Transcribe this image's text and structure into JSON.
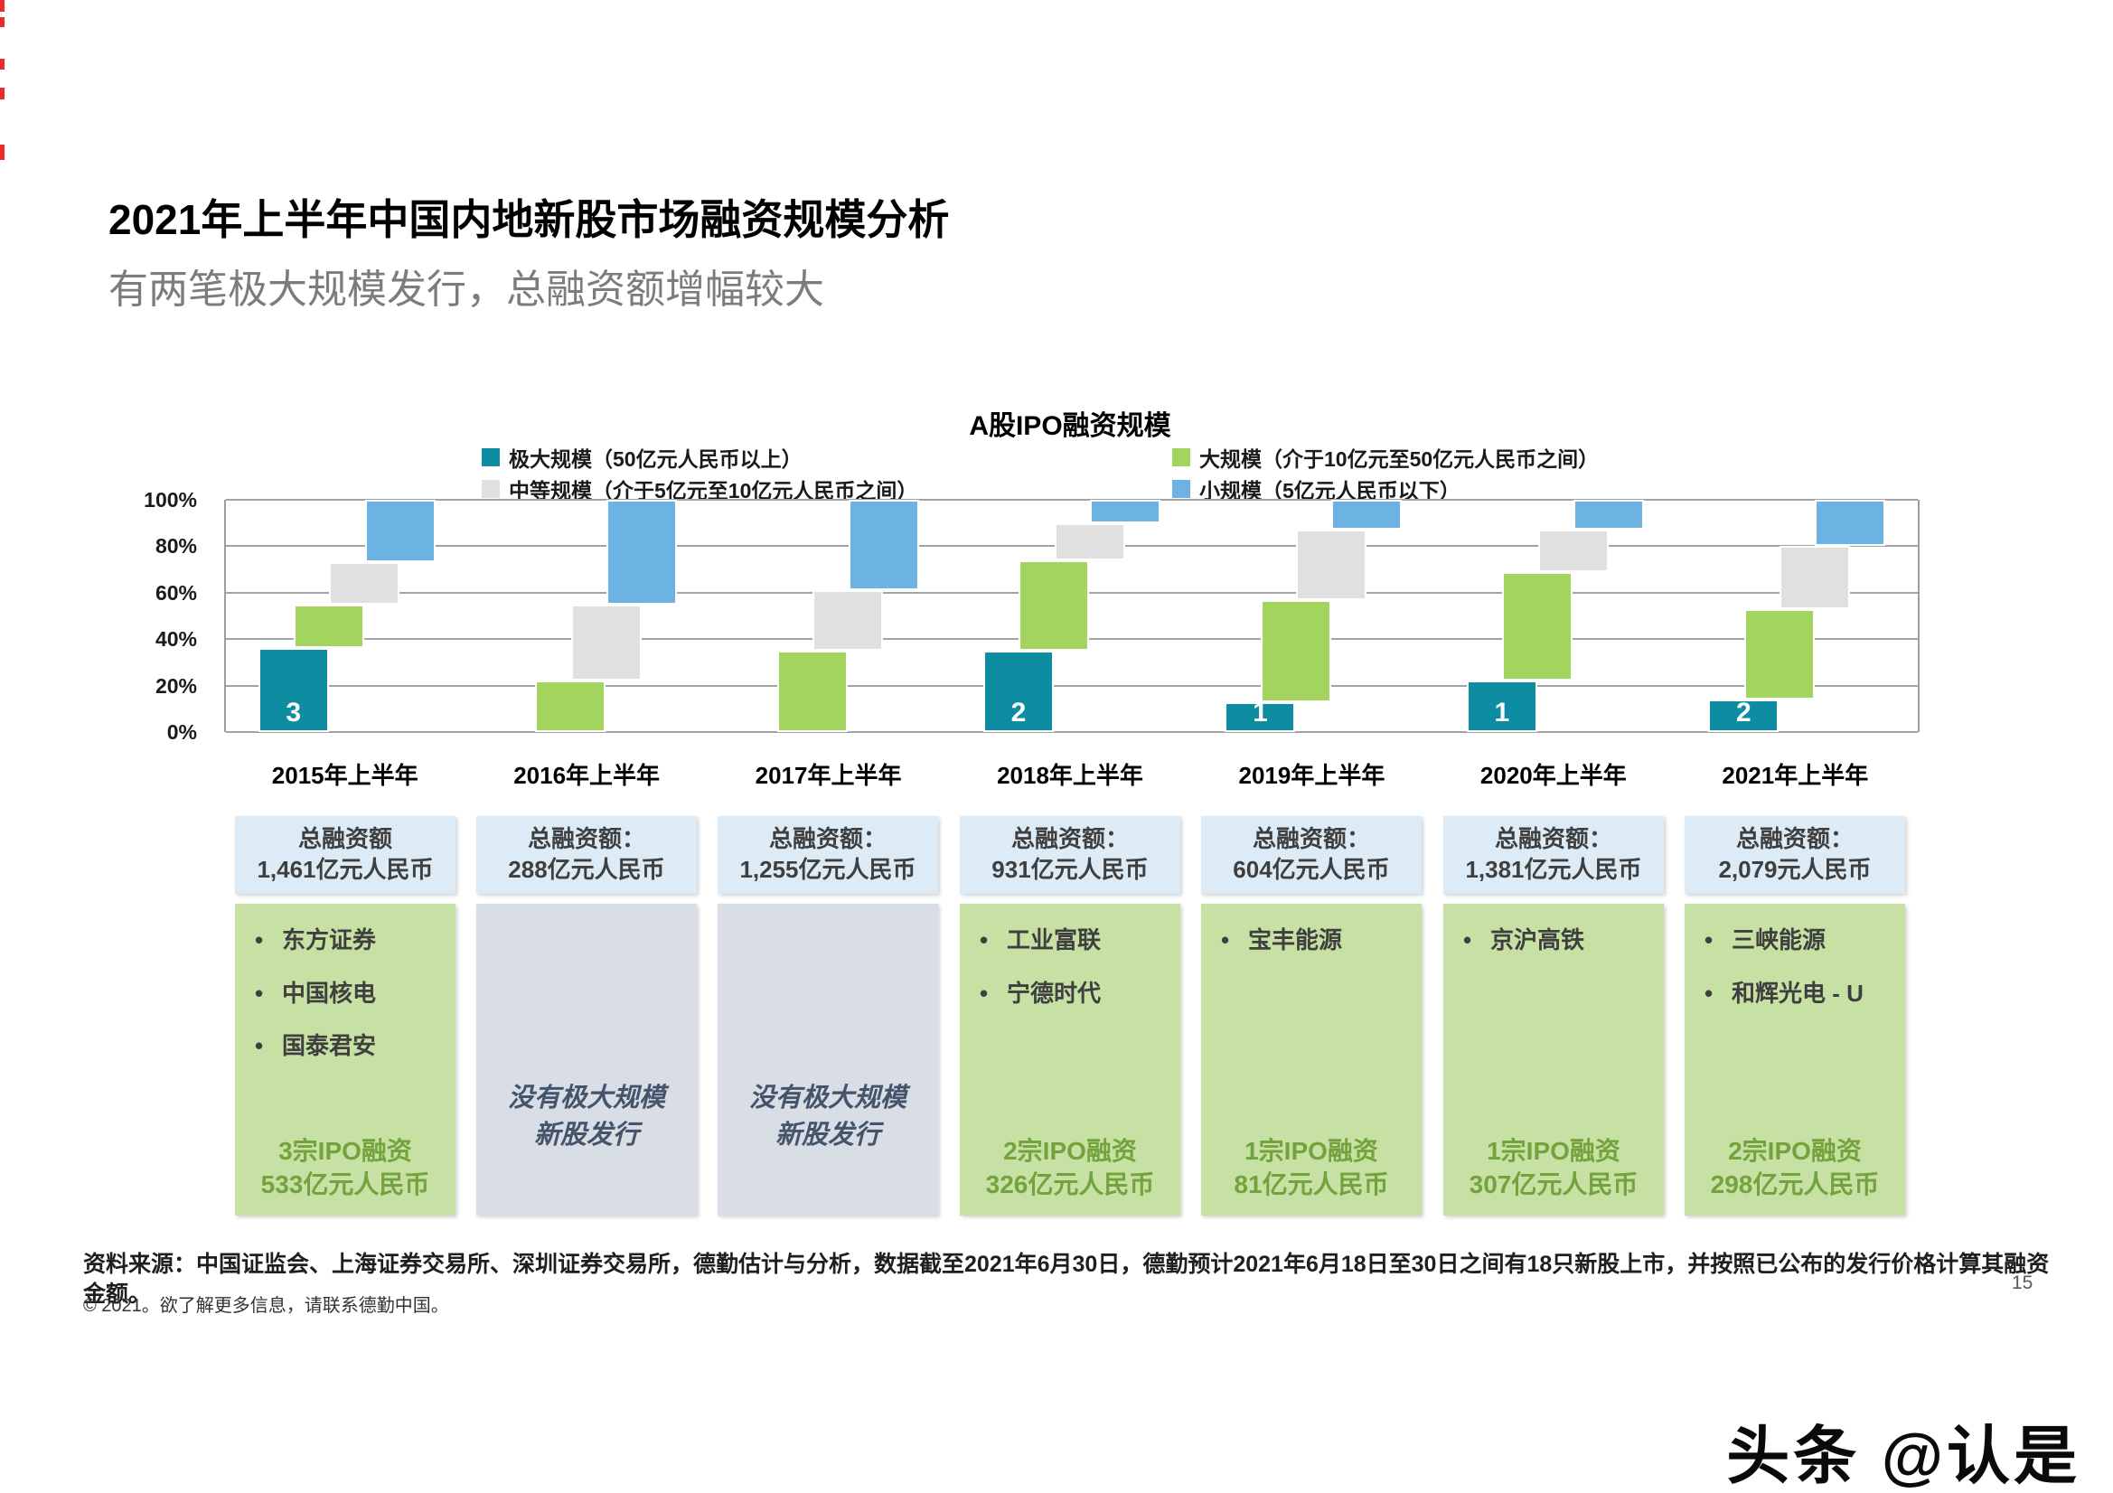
{
  "page": {
    "title": "2021年上半年中国内地新股市场融资规模分析",
    "subtitle": "有两笔极大规模发行，总融资额增幅较大",
    "source_note": "资料来源：中国证监会、上海证券交易所、深圳证券交易所，德勤估计与分析，数据截至2021年6月30日，德勤预计2021年6月18日至30日之间有18只新股上市，并按照已公布的发行价格计算其融资金额。",
    "copyright_note": "© 2021。欲了解更多信息，请联系德勤中国。",
    "page_number": "15",
    "watermark": "头条 @认是"
  },
  "chart_data": {
    "type": "bar",
    "stacked": true,
    "title": "A股IPO融资规模",
    "categories": [
      "2015年上半年",
      "2016年上半年",
      "2017年上半年",
      "2018年上半年",
      "2019年上半年",
      "2020年上半年",
      "2021年上半年"
    ],
    "series": [
      {
        "name": "极大规模（50亿元人民币以上）",
        "color": "#0E8DA2",
        "values": [
          36,
          0,
          0,
          35,
          13,
          22,
          14
        ]
      },
      {
        "name": "大规模（介于10亿元至50亿元人民币之间）",
        "color": "#A2D45E",
        "values": [
          19,
          22,
          35,
          39,
          44,
          47,
          39
        ]
      },
      {
        "name": "中等规模（介于5亿元至10亿元人民币之间）",
        "color": "#E0E0E0",
        "values": [
          18,
          33,
          26,
          16,
          30,
          18,
          27
        ]
      },
      {
        "name": "小规模（5亿元人民币以下）",
        "color": "#6CB2E2",
        "values": [
          27,
          45,
          39,
          10,
          13,
          13,
          20
        ]
      }
    ],
    "mega_deal_counts": [
      "3",
      "",
      "",
      "2",
      "1",
      "1",
      "2"
    ],
    "yticks": [
      "0%",
      "20%",
      "40%",
      "60%",
      "80%",
      "100%"
    ],
    "ylim": [
      0,
      100
    ],
    "unit": "percent",
    "grid": true,
    "legend_position": "top"
  },
  "summary_columns": [
    {
      "header_line1": "总融资额",
      "header_line2": "1,461亿元人民币",
      "type": "green",
      "companies": [
        "东方证券",
        "中国核电",
        "国泰君安"
      ],
      "deal_line1": "3宗IPO融资",
      "deal_line2": "533亿元人民币"
    },
    {
      "header_line1": "总融资额：",
      "header_line2": "288亿元人民币",
      "type": "gray",
      "no_deal_line1": "没有极大规模",
      "no_deal_line2": "新股发行"
    },
    {
      "header_line1": "总融资额：",
      "header_line2": "1,255亿元人民币",
      "type": "gray",
      "no_deal_line1": "没有极大规模",
      "no_deal_line2": "新股发行"
    },
    {
      "header_line1": "总融资额：",
      "header_line2": "931亿元人民币",
      "type": "green",
      "companies": [
        "工业富联",
        "宁德时代"
      ],
      "deal_line1": "2宗IPO融资",
      "deal_line2": "326亿元人民币"
    },
    {
      "header_line1": "总融资额：",
      "header_line2": "604亿元人民币",
      "type": "green",
      "companies": [
        "宝丰能源"
      ],
      "deal_line1": "1宗IPO融资",
      "deal_line2": "81亿元人民币"
    },
    {
      "header_line1": "总融资额：",
      "header_line2": "1,381亿元人民币",
      "type": "green",
      "companies": [
        "京沪高铁"
      ],
      "deal_line1": "1宗IPO融资",
      "deal_line2": "307亿元人民币"
    },
    {
      "header_line1": "总融资额：",
      "header_line2": "2,079元人民币",
      "type": "green",
      "companies": [
        "三峡能源",
        "和辉光电 - U"
      ],
      "deal_line1": "2宗IPO融资",
      "deal_line2": "298亿元人民币"
    }
  ],
  "colors": {
    "header_box_bg": "#DCEBF5",
    "green_box_bg": "#C7E1A5",
    "gray_box_bg": "#D8DDE6",
    "deal_text": "#74A23C",
    "no_deal_text": "#44546A",
    "red_mark": "#EE2B2B"
  }
}
